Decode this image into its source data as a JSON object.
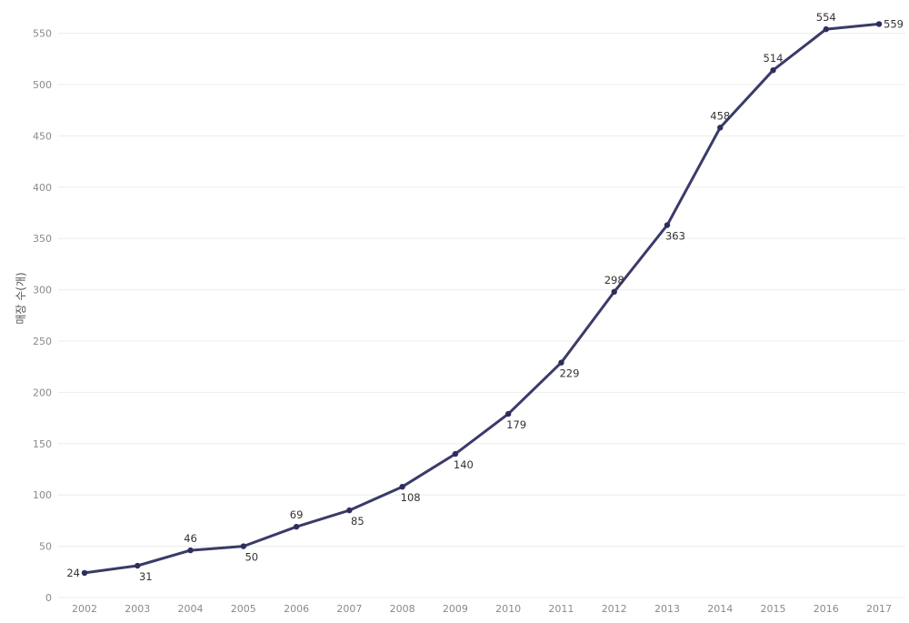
{
  "chart_data": {
    "type": "line",
    "title": "",
    "xlabel": "",
    "ylabel": "매장 수(개)",
    "x": [
      "2002",
      "2003",
      "2004",
      "2005",
      "2006",
      "2007",
      "2008",
      "2009",
      "2010",
      "2011",
      "2012",
      "2013",
      "2014",
      "2015",
      "2016",
      "2017"
    ],
    "series": [
      {
        "values": [
          24,
          31,
          46,
          50,
          69,
          85,
          108,
          140,
          179,
          229,
          298,
          363,
          458,
          514,
          554,
          559
        ]
      }
    ],
    "label_positions": [
      "left",
      "below",
      "above",
      "below",
      "above",
      "below",
      "below",
      "below",
      "below",
      "below",
      "above",
      "below",
      "above",
      "above",
      "above",
      "right"
    ],
    "yticks": [
      0,
      50,
      100,
      150,
      200,
      250,
      300,
      350,
      400,
      450,
      500,
      550
    ],
    "ylim": [
      0,
      580
    ],
    "grid": true,
    "colors": {
      "line": "#3a3a6a",
      "marker": "#2e2e5e"
    }
  }
}
